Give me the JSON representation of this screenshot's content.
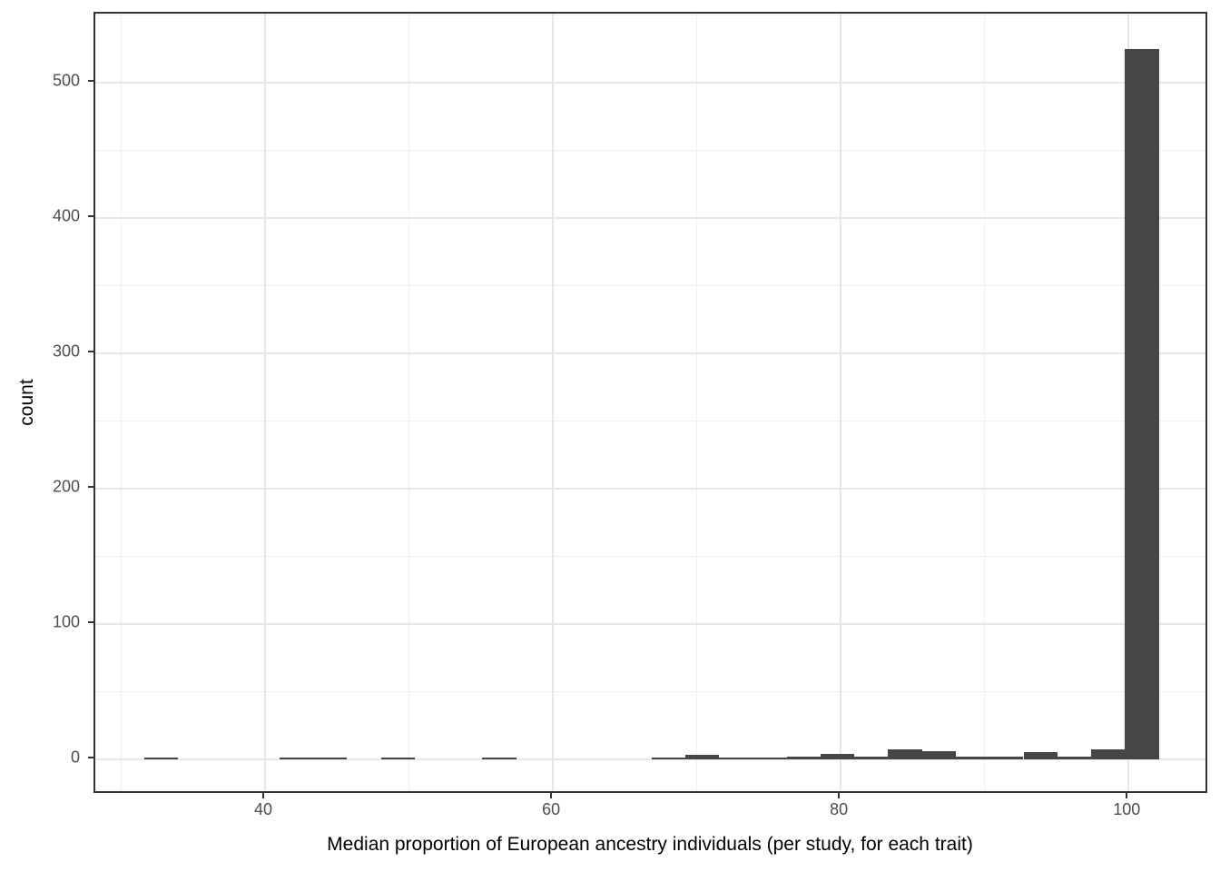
{
  "chart_data": {
    "type": "bar",
    "subtype": "histogram",
    "title": "",
    "xlabel": "Median proportion of European ancestry individuals (per study, for each trait)",
    "ylabel": "count",
    "bins": {
      "start": 31.6,
      "width": 2.35,
      "counts": [
        1,
        0,
        0,
        0,
        1,
        1,
        0,
        1,
        0,
        0,
        1,
        0,
        0,
        0,
        0,
        1,
        3,
        1,
        1,
        2,
        4,
        2,
        7,
        6,
        2,
        2,
        5,
        2,
        7,
        525
      ]
    },
    "x_ticks": [
      40,
      60,
      80,
      100
    ],
    "y_ticks": [
      0,
      100,
      200,
      300,
      400,
      500
    ],
    "x_minor_gridlines": [
      30,
      50,
      70,
      90
    ],
    "y_minor_gridlines": [
      50,
      150,
      250,
      350,
      450,
      550
    ],
    "x_range": [
      28.2,
      105.6
    ],
    "y_range": [
      -26.3,
      551.3
    ],
    "grid": true,
    "legend": false,
    "colors": {
      "bar_fill": "#464646",
      "grid_major": "#e7e7e7",
      "grid_minor": "#f0f0f0",
      "panel_border": "#333333",
      "tick_mark": "#333333",
      "tick_label": "#4d4d4d",
      "axis_title": "#000000",
      "background": "#ffffff"
    }
  }
}
